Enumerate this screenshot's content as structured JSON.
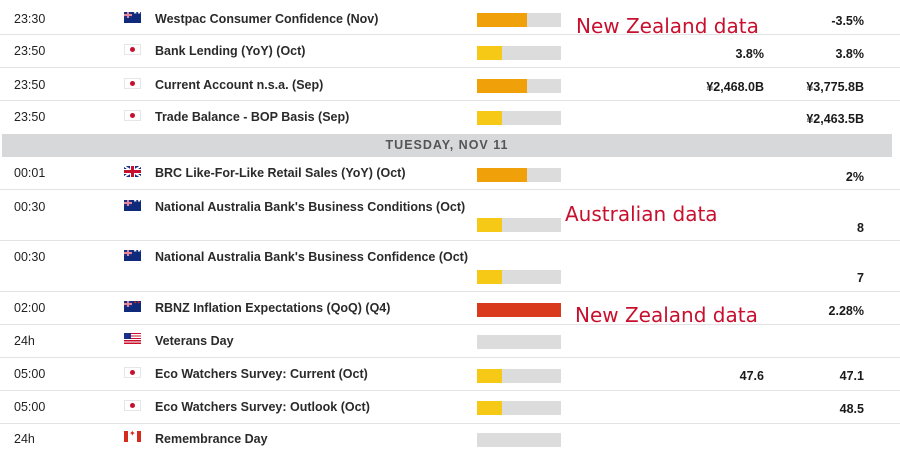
{
  "colors": {
    "impact_high": "#d93a1e",
    "impact_medium": "#f0a008",
    "impact_low": "#f5c915",
    "annotation": "#c8102e"
  },
  "day_header": "TUESDAY, NOV 11",
  "annotations": [
    "New Zealand data",
    "Australian data",
    "New Zealand data"
  ],
  "events": [
    {
      "time": "23:30",
      "flag": "australia-flag-icon",
      "event": "Westpac Consumer Confidence (Nov)",
      "impact": "medium",
      "impact_level": 0.6,
      "actual": "",
      "previous": "-3.5%"
    },
    {
      "time": "23:50",
      "flag": "japan-flag-icon",
      "event": "Bank Lending (YoY) (Oct)",
      "impact": "low",
      "impact_level": 0.3,
      "actual": "3.8%",
      "previous": "3.8%"
    },
    {
      "time": "23:50",
      "flag": "japan-flag-icon",
      "event": "Current Account n.s.a. (Sep)",
      "impact": "medium",
      "impact_level": 0.6,
      "actual": "¥2,468.0B",
      "previous": "¥3,775.8B"
    },
    {
      "time": "23:50",
      "flag": "japan-flag-icon",
      "event": "Trade Balance - BOP Basis (Sep)",
      "impact": "low",
      "impact_level": 0.3,
      "actual": "",
      "previous": "¥2,463.5B"
    },
    {
      "time": "00:01",
      "flag": "uk-flag-icon",
      "event": "BRC Like-For-Like Retail Sales (YoY) (Oct)",
      "impact": "medium",
      "impact_level": 0.6,
      "actual": "",
      "previous": "2%"
    },
    {
      "time": "00:30",
      "flag": "australia-flag-icon",
      "event": "National Australia Bank's Business Conditions (Oct)",
      "impact": "low",
      "impact_level": 0.3,
      "actual": "",
      "previous": "8"
    },
    {
      "time": "00:30",
      "flag": "australia-flag-icon",
      "event": "National Australia Bank's Business Confidence (Oct)",
      "impact": "low",
      "impact_level": 0.3,
      "actual": "",
      "previous": "7"
    },
    {
      "time": "02:00",
      "flag": "new-zealand-flag-icon",
      "event": "RBNZ Inflation Expectations (QoQ) (Q4)",
      "impact": "high",
      "impact_level": 1.0,
      "actual": "",
      "previous": "2.28%"
    },
    {
      "time": "24h",
      "flag": "usa-flag-icon",
      "event": "Veterans Day",
      "impact": "none",
      "impact_level": 0,
      "actual": "",
      "previous": ""
    },
    {
      "time": "05:00",
      "flag": "japan-flag-icon",
      "event": "Eco Watchers Survey: Current (Oct)",
      "impact": "low",
      "impact_level": 0.3,
      "actual": "47.6",
      "previous": "47.1"
    },
    {
      "time": "05:00",
      "flag": "japan-flag-icon",
      "event": "Eco Watchers Survey: Outlook (Oct)",
      "impact": "low",
      "impact_level": 0.3,
      "actual": "",
      "previous": "48.5"
    },
    {
      "time": "24h",
      "flag": "canada-flag-icon",
      "event": "Remembrance Day",
      "impact": "none",
      "impact_level": 0,
      "actual": "",
      "previous": ""
    }
  ]
}
